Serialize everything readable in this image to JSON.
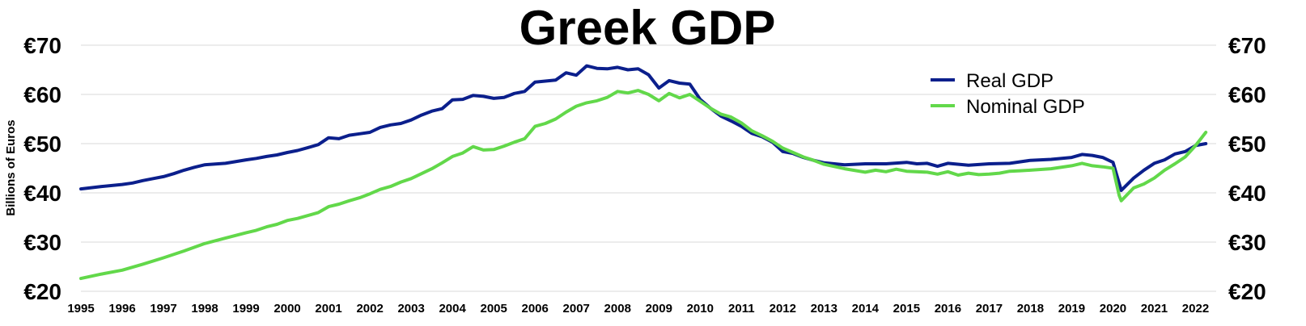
{
  "chart_data": {
    "type": "line",
    "title": "Greek GDP",
    "ylabel": "Billions of Euros",
    "xlabel": "",
    "ylim": [
      20,
      70
    ],
    "xlim": [
      1995,
      2022.5
    ],
    "grid": true,
    "legend": "top-right",
    "y_ticks": [
      "€20",
      "€30",
      "€40",
      "€50",
      "€60",
      "€70"
    ],
    "x_ticks": [
      "1995",
      "1996",
      "1997",
      "1998",
      "1999",
      "2000",
      "2001",
      "2002",
      "2003",
      "2004",
      "2005",
      "2006",
      "2007",
      "2008",
      "2009",
      "2010",
      "2011",
      "2012",
      "2013",
      "2014",
      "2015",
      "2016",
      "2017",
      "2018",
      "2019",
      "2020",
      "2021",
      "2022"
    ],
    "series": [
      {
        "name": "Real GDP",
        "color": "#0b1f8c",
        "points": [
          [
            1995.0,
            40.8
          ],
          [
            1995.5,
            41.3
          ],
          [
            1996.0,
            41.7
          ],
          [
            1996.25,
            42.0
          ],
          [
            1996.5,
            42.5
          ],
          [
            1996.75,
            42.9
          ],
          [
            1997.0,
            43.3
          ],
          [
            1997.25,
            43.9
          ],
          [
            1997.5,
            44.6
          ],
          [
            1997.75,
            45.2
          ],
          [
            1998.0,
            45.7
          ],
          [
            1998.5,
            46.0
          ],
          [
            1999.0,
            46.7
          ],
          [
            1999.25,
            47.0
          ],
          [
            1999.5,
            47.4
          ],
          [
            1999.75,
            47.7
          ],
          [
            2000.0,
            48.2
          ],
          [
            2000.25,
            48.6
          ],
          [
            2000.5,
            49.2
          ],
          [
            2000.75,
            49.8
          ],
          [
            2001.0,
            51.2
          ],
          [
            2001.25,
            51.0
          ],
          [
            2001.5,
            51.7
          ],
          [
            2001.75,
            52.0
          ],
          [
            2002.0,
            52.3
          ],
          [
            2002.25,
            53.3
          ],
          [
            2002.5,
            53.8
          ],
          [
            2002.75,
            54.1
          ],
          [
            2003.0,
            54.8
          ],
          [
            2003.25,
            55.8
          ],
          [
            2003.5,
            56.6
          ],
          [
            2003.75,
            57.1
          ],
          [
            2004.0,
            58.9
          ],
          [
            2004.25,
            59.0
          ],
          [
            2004.5,
            59.8
          ],
          [
            2004.75,
            59.6
          ],
          [
            2005.0,
            59.2
          ],
          [
            2005.25,
            59.4
          ],
          [
            2005.5,
            60.2
          ],
          [
            2005.75,
            60.6
          ],
          [
            2006.0,
            62.5
          ],
          [
            2006.25,
            62.7
          ],
          [
            2006.5,
            62.9
          ],
          [
            2006.75,
            64.4
          ],
          [
            2007.0,
            63.9
          ],
          [
            2007.25,
            65.8
          ],
          [
            2007.5,
            65.3
          ],
          [
            2007.75,
            65.2
          ],
          [
            2008.0,
            65.5
          ],
          [
            2008.25,
            65.0
          ],
          [
            2008.5,
            65.2
          ],
          [
            2008.75,
            64.0
          ],
          [
            2009.0,
            61.3
          ],
          [
            2009.25,
            62.8
          ],
          [
            2009.5,
            62.3
          ],
          [
            2009.75,
            62.1
          ],
          [
            2010.0,
            59.0
          ],
          [
            2010.25,
            57.2
          ],
          [
            2010.5,
            55.6
          ],
          [
            2010.75,
            54.6
          ],
          [
            2011.0,
            53.5
          ],
          [
            2011.25,
            52.1
          ],
          [
            2011.5,
            51.4
          ],
          [
            2011.75,
            50.3
          ],
          [
            2012.0,
            48.4
          ],
          [
            2012.25,
            48.0
          ],
          [
            2012.5,
            47.2
          ],
          [
            2012.75,
            46.6
          ],
          [
            2013.0,
            46.1
          ],
          [
            2013.5,
            45.7
          ],
          [
            2014.0,
            45.9
          ],
          [
            2014.5,
            45.9
          ],
          [
            2015.0,
            46.2
          ],
          [
            2015.25,
            45.9
          ],
          [
            2015.5,
            46.0
          ],
          [
            2015.75,
            45.4
          ],
          [
            2016.0,
            46.0
          ],
          [
            2016.5,
            45.6
          ],
          [
            2017.0,
            45.9
          ],
          [
            2017.5,
            46.0
          ],
          [
            2018.0,
            46.6
          ],
          [
            2018.5,
            46.8
          ],
          [
            2019.0,
            47.2
          ],
          [
            2019.25,
            47.8
          ],
          [
            2019.5,
            47.6
          ],
          [
            2019.75,
            47.2
          ],
          [
            2020.0,
            46.2
          ],
          [
            2020.2,
            40.5
          ],
          [
            2020.5,
            43.0
          ],
          [
            2020.75,
            44.6
          ],
          [
            2021.0,
            46.0
          ],
          [
            2021.25,
            46.7
          ],
          [
            2021.5,
            47.9
          ],
          [
            2021.75,
            48.4
          ],
          [
            2022.0,
            49.6
          ],
          [
            2022.25,
            50.0
          ]
        ]
      },
      {
        "name": "Nominal GDP",
        "color": "#62d84a",
        "points": [
          [
            1995.0,
            22.6
          ],
          [
            1995.5,
            23.5
          ],
          [
            1996.0,
            24.3
          ],
          [
            1996.5,
            25.5
          ],
          [
            1997.0,
            26.8
          ],
          [
            1997.5,
            28.2
          ],
          [
            1998.0,
            29.7
          ],
          [
            1998.5,
            30.8
          ],
          [
            1999.0,
            31.9
          ],
          [
            1999.25,
            32.4
          ],
          [
            1999.5,
            33.1
          ],
          [
            1999.75,
            33.6
          ],
          [
            2000.0,
            34.4
          ],
          [
            2000.25,
            34.8
          ],
          [
            2000.5,
            35.4
          ],
          [
            2000.75,
            36.0
          ],
          [
            2001.0,
            37.2
          ],
          [
            2001.25,
            37.7
          ],
          [
            2001.5,
            38.4
          ],
          [
            2001.75,
            39.0
          ],
          [
            2002.0,
            39.8
          ],
          [
            2002.25,
            40.7
          ],
          [
            2002.5,
            41.3
          ],
          [
            2002.75,
            42.2
          ],
          [
            2003.0,
            42.9
          ],
          [
            2003.25,
            43.9
          ],
          [
            2003.5,
            44.9
          ],
          [
            2003.75,
            46.1
          ],
          [
            2004.0,
            47.4
          ],
          [
            2004.25,
            48.1
          ],
          [
            2004.5,
            49.4
          ],
          [
            2004.75,
            48.7
          ],
          [
            2005.0,
            48.8
          ],
          [
            2005.25,
            49.5
          ],
          [
            2005.5,
            50.3
          ],
          [
            2005.75,
            51.0
          ],
          [
            2006.0,
            53.5
          ],
          [
            2006.25,
            54.1
          ],
          [
            2006.5,
            55.0
          ],
          [
            2006.75,
            56.4
          ],
          [
            2007.0,
            57.6
          ],
          [
            2007.25,
            58.3
          ],
          [
            2007.5,
            58.7
          ],
          [
            2007.75,
            59.4
          ],
          [
            2008.0,
            60.6
          ],
          [
            2008.25,
            60.3
          ],
          [
            2008.5,
            60.8
          ],
          [
            2008.75,
            60.0
          ],
          [
            2009.0,
            58.7
          ],
          [
            2009.25,
            60.2
          ],
          [
            2009.5,
            59.3
          ],
          [
            2009.75,
            60.0
          ],
          [
            2010.0,
            58.6
          ],
          [
            2010.25,
            57.2
          ],
          [
            2010.5,
            56.0
          ],
          [
            2010.75,
            55.4
          ],
          [
            2011.0,
            54.2
          ],
          [
            2011.25,
            52.6
          ],
          [
            2011.5,
            51.6
          ],
          [
            2011.75,
            50.5
          ],
          [
            2012.0,
            49.1
          ],
          [
            2012.25,
            48.2
          ],
          [
            2012.5,
            47.3
          ],
          [
            2012.75,
            46.6
          ],
          [
            2013.0,
            45.8
          ],
          [
            2013.5,
            44.9
          ],
          [
            2014.0,
            44.2
          ],
          [
            2014.25,
            44.6
          ],
          [
            2014.5,
            44.3
          ],
          [
            2014.75,
            44.8
          ],
          [
            2015.0,
            44.4
          ],
          [
            2015.5,
            44.2
          ],
          [
            2015.75,
            43.8
          ],
          [
            2016.0,
            44.3
          ],
          [
            2016.25,
            43.6
          ],
          [
            2016.5,
            44.0
          ],
          [
            2016.75,
            43.7
          ],
          [
            2017.0,
            43.8
          ],
          [
            2017.25,
            44.0
          ],
          [
            2017.5,
            44.4
          ],
          [
            2017.75,
            44.5
          ],
          [
            2018.0,
            44.6
          ],
          [
            2018.5,
            44.9
          ],
          [
            2019.0,
            45.5
          ],
          [
            2019.25,
            46.0
          ],
          [
            2019.5,
            45.5
          ],
          [
            2019.75,
            45.3
          ],
          [
            2020.0,
            45.0
          ],
          [
            2020.15,
            39.5
          ],
          [
            2020.2,
            38.4
          ],
          [
            2020.5,
            41.0
          ],
          [
            2020.75,
            41.8
          ],
          [
            2021.0,
            43.0
          ],
          [
            2021.25,
            44.6
          ],
          [
            2021.5,
            45.9
          ],
          [
            2021.75,
            47.3
          ],
          [
            2022.0,
            49.6
          ],
          [
            2022.25,
            52.3
          ]
        ]
      }
    ]
  }
}
